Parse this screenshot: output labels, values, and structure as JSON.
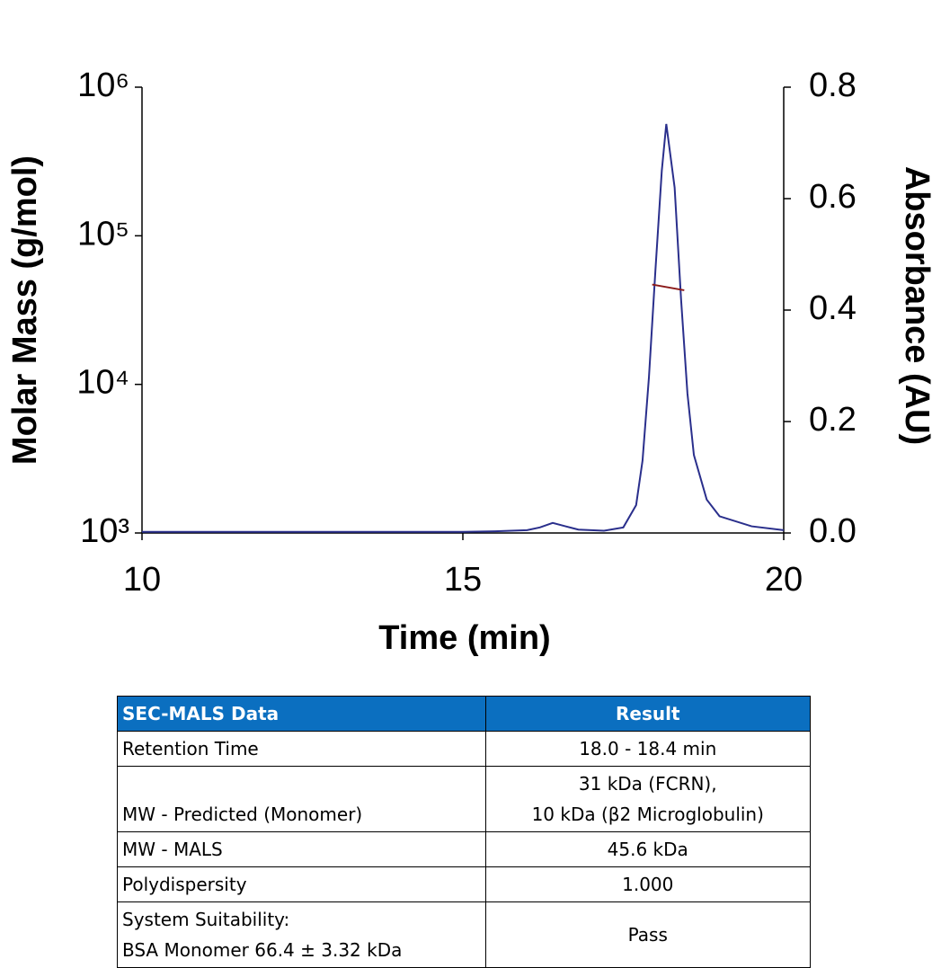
{
  "chart_data": {
    "type": "line",
    "x_label": "Time (min)",
    "y_label": "Molar Mass (g/mol)",
    "y2_label": "Absorbance (AU)",
    "xlim": [
      10,
      20
    ],
    "xticks": [
      10,
      15,
      20
    ],
    "ylim": [
      1000,
      1000000
    ],
    "ylog": true,
    "yticks": [
      {
        "value": 1000,
        "label": "10³"
      },
      {
        "value": 10000,
        "label": "10⁴"
      },
      {
        "value": 100000,
        "label": "10⁵"
      },
      {
        "value": 1000000,
        "label": "10⁶"
      }
    ],
    "y2lim": [
      0,
      0.8
    ],
    "y2ticks": [
      {
        "value": 0,
        "label": "0.0"
      },
      0.2,
      0.4,
      0.6,
      0.8
    ],
    "series": [
      {
        "color": "#2a2f8c",
        "axis": "y2",
        "x": [
          10,
          12,
          14,
          15,
          15.5,
          16,
          16.2,
          16.4,
          16.6,
          16.8,
          17.2,
          17.5,
          17.7,
          17.8,
          17.9,
          18.0,
          18.1,
          18.17,
          18.3,
          18.4,
          18.5,
          18.6,
          18.8,
          19.0,
          19.5,
          20
        ],
        "values": [
          0.002,
          0.002,
          0.002,
          0.002,
          0.003,
          0.005,
          0.01,
          0.018,
          0.012,
          0.006,
          0.004,
          0.01,
          0.05,
          0.13,
          0.28,
          0.47,
          0.65,
          0.734,
          0.62,
          0.42,
          0.25,
          0.14,
          0.06,
          0.03,
          0.012,
          0.005
        ]
      },
      {
        "color": "#8b1a1a",
        "axis": "y",
        "x": [
          17.95,
          18.45
        ],
        "values": [
          47000,
          43000
        ]
      }
    ]
  },
  "table": {
    "header": [
      "SEC-MALS Data",
      "Result"
    ],
    "rows": [
      [
        "Retention Time",
        "18.0 - 18.4 min"
      ],
      [
        "MW - Predicted (Monomer)",
        [
          "31 kDa (FCRN),",
          "10 kDa (β2 Microglobulin)"
        ]
      ],
      [
        "MW - MALS",
        "45.6 kDa"
      ],
      [
        "Polydispersity",
        "1.000"
      ],
      [
        [
          "System Suitability:",
          "BSA Monomer 66.4 ± 3.32 kDa"
        ],
        "Pass"
      ]
    ]
  }
}
